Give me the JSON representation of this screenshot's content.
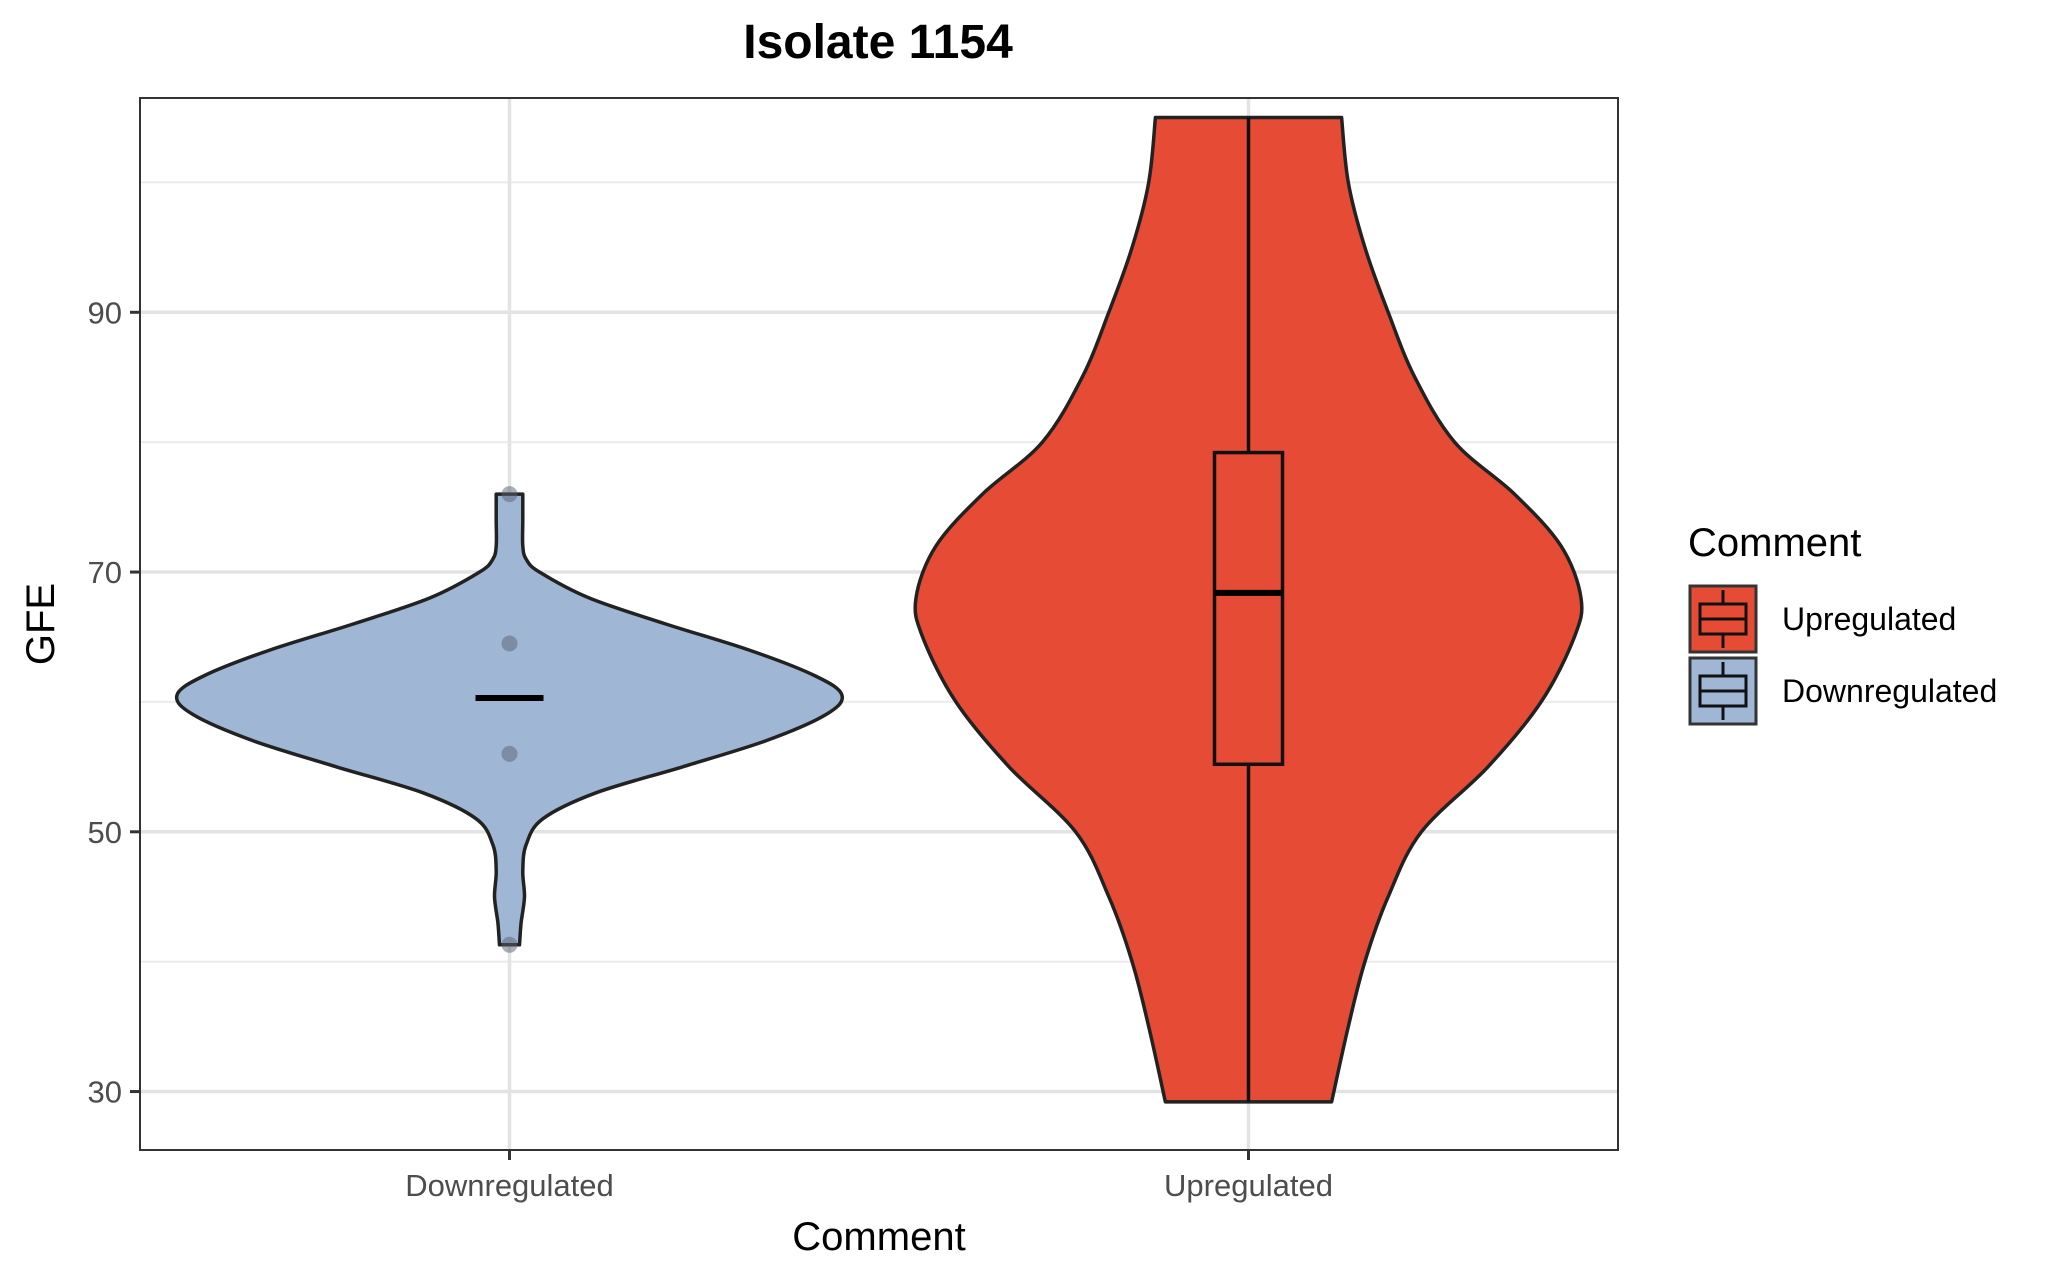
{
  "chart_data": {
    "type": "violin",
    "title": "Isolate 1154",
    "xlabel": "Comment",
    "ylabel": "GFE",
    "categories": [
      "Downregulated",
      "Upregulated"
    ],
    "ylim": [
      25.5,
      106.5
    ],
    "yticks": [
      30,
      50,
      70,
      90
    ],
    "grid": true,
    "legend": {
      "title": "Comment",
      "position": "right",
      "entries": [
        {
          "label": "Upregulated",
          "color": "#E64B35"
        },
        {
          "label": "Downregulated",
          "color": "#A0B6D5"
        }
      ]
    },
    "groups": [
      {
        "name": "Downregulated",
        "color": "#A0B6D5",
        "range": [
          41.3,
          76
        ],
        "median": 60.3,
        "points": [
          76,
          64.5,
          56,
          41.3
        ],
        "density": [
          [
            41.3,
            0.03
          ],
          [
            43,
            0.035
          ],
          [
            45,
            0.045
          ],
          [
            47,
            0.04
          ],
          [
            49,
            0.05
          ],
          [
            51,
            0.1
          ],
          [
            53,
            0.26
          ],
          [
            55,
            0.52
          ],
          [
            57,
            0.77
          ],
          [
            59,
            0.95
          ],
          [
            60.5,
            1.0
          ],
          [
            62,
            0.92
          ],
          [
            64,
            0.72
          ],
          [
            66,
            0.47
          ],
          [
            68,
            0.24
          ],
          [
            70,
            0.09
          ],
          [
            71,
            0.05
          ],
          [
            72,
            0.04
          ],
          [
            74,
            0.04
          ],
          [
            76,
            0.04
          ]
        ]
      },
      {
        "name": "Upregulated",
        "color": "#E64B35",
        "range": [
          29.2,
          105
        ],
        "q1": 55.2,
        "median": 68.4,
        "q3": 79.2,
        "density": [
          [
            29.2,
            0.25
          ],
          [
            35,
            0.3
          ],
          [
            40,
            0.35
          ],
          [
            45,
            0.42
          ],
          [
            50,
            0.52
          ],
          [
            55,
            0.72
          ],
          [
            60,
            0.88
          ],
          [
            65,
            0.98
          ],
          [
            68,
            1.0
          ],
          [
            72,
            0.94
          ],
          [
            76,
            0.8
          ],
          [
            80,
            0.62
          ],
          [
            85,
            0.5
          ],
          [
            90,
            0.42
          ],
          [
            95,
            0.35
          ],
          [
            100,
            0.3
          ],
          [
            105,
            0.28
          ]
        ]
      }
    ]
  }
}
